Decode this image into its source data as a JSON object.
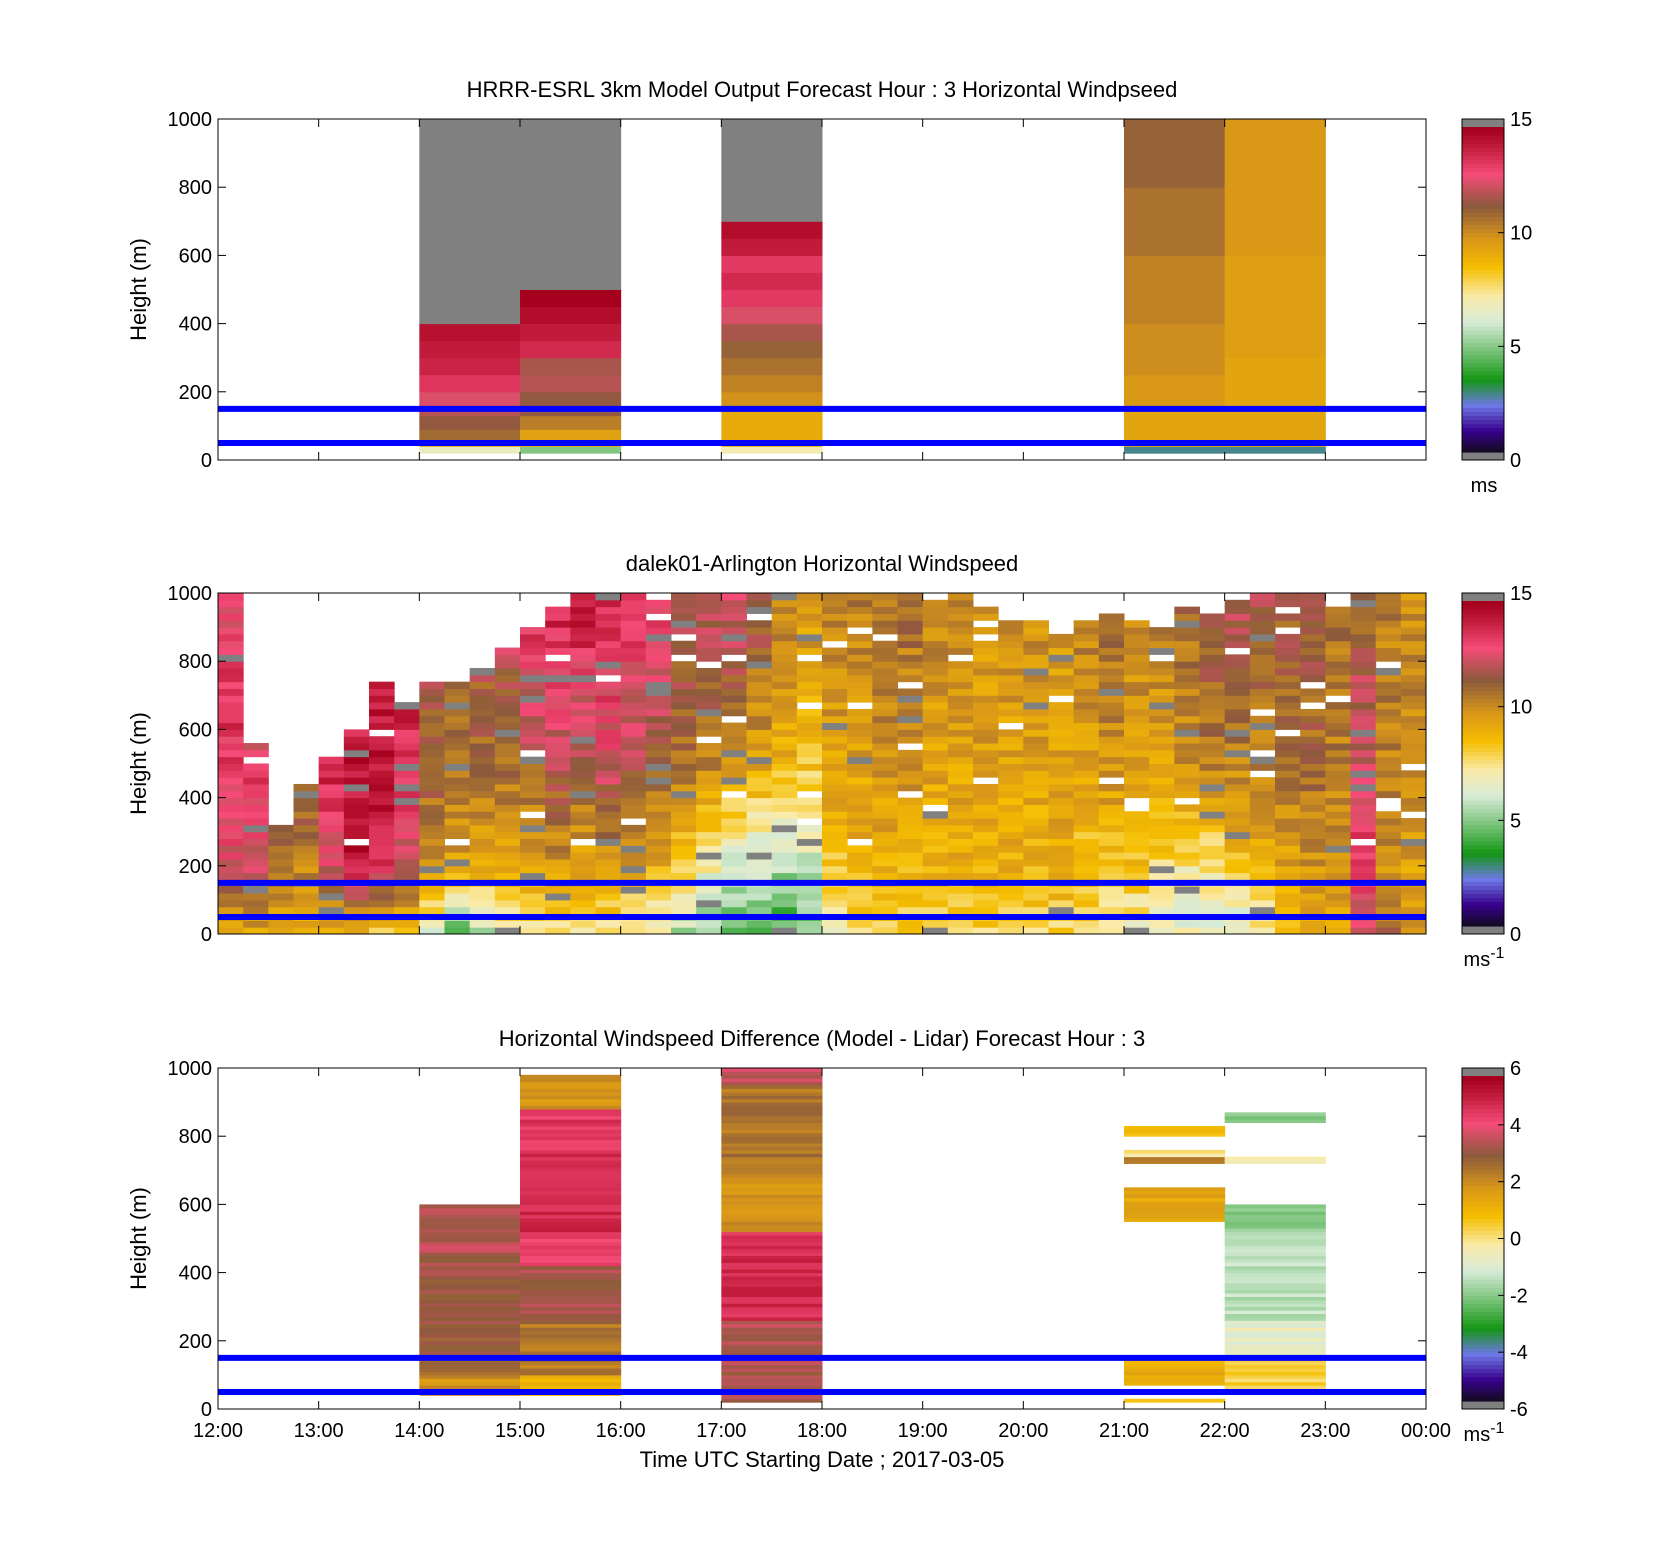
{
  "figure": {
    "background": "#ffffff",
    "x_tick_labels": [
      "12:00",
      "13:00",
      "14:00",
      "15:00",
      "16:00",
      "17:00",
      "18:00",
      "19:00",
      "20:00",
      "21:00",
      "22:00",
      "23:00",
      "00:00"
    ],
    "x_label": "Time UTC  Starting Date ; 2017-03-05",
    "y_label": "Height (m)",
    "y_tick_labels": [
      "0",
      "200",
      "400",
      "600",
      "800",
      "1000"
    ],
    "reference_line_color": "#0000ff"
  },
  "chart_data": [
    {
      "type": "heatmap",
      "title": "HRRR-ESRL 3km Model Output   Forecast Hour : 3 Horizontal Windpseed",
      "ylabel": "Height (m)",
      "xlim_hours": [
        12,
        24
      ],
      "ylim": [
        0,
        1000
      ],
      "colorbar": {
        "range": [
          0,
          15
        ],
        "ticks": [
          "0",
          "5",
          "10",
          "15"
        ],
        "unit": "ms"
      },
      "reference_lines_m": [
        50,
        150
      ],
      "columns": [
        {
          "start_hour": 14,
          "end_hour": 15,
          "top_m": 1000,
          "bins": [
            [
              20,
              40,
              6.6
            ],
            [
              40,
              60,
              9
            ],
            [
              60,
              90,
              11
            ],
            [
              90,
              130,
              11.5
            ],
            [
              130,
              160,
              12
            ],
            [
              160,
              200,
              12.5
            ],
            [
              200,
              250,
              13.5
            ],
            [
              250,
              300,
              14
            ],
            [
              300,
              350,
              14.2
            ],
            [
              350,
              400,
              14.5
            ],
            [
              400,
              1000,
              "nodata"
            ]
          ]
        },
        {
          "start_hour": 15,
          "end_hour": 16,
          "top_m": 1000,
          "bins": [
            [
              20,
              40,
              4.8
            ],
            [
              40,
              60,
              9
            ],
            [
              60,
              90,
              9.5
            ],
            [
              90,
              130,
              10.5
            ],
            [
              130,
              200,
              11.5
            ],
            [
              200,
              250,
              12
            ],
            [
              250,
              300,
              11.8
            ],
            [
              300,
              350,
              13.8
            ],
            [
              350,
              400,
              14.2
            ],
            [
              400,
              450,
              14.6
            ],
            [
              450,
              500,
              15
            ],
            [
              500,
              1000,
              "nodata"
            ]
          ]
        },
        {
          "start_hour": 17,
          "end_hour": 18,
          "top_m": 1000,
          "bins": [
            [
              20,
              40,
              7
            ],
            [
              40,
              60,
              9
            ],
            [
              60,
              150,
              9.2
            ],
            [
              150,
              200,
              10
            ],
            [
              200,
              250,
              10.4
            ],
            [
              250,
              300,
              10.8
            ],
            [
              300,
              350,
              11.2
            ],
            [
              350,
              400,
              11.8
            ],
            [
              400,
              450,
              12.5
            ],
            [
              450,
              500,
              13.4
            ],
            [
              500,
              550,
              13.8
            ],
            [
              550,
              600,
              13.4
            ],
            [
              600,
              650,
              14.2
            ],
            [
              650,
              700,
              14.6
            ],
            [
              700,
              1000,
              "nodata"
            ]
          ]
        },
        {
          "start_hour": 21,
          "end_hour": 22,
          "top_m": 1000,
          "bins": [
            [
              20,
              40,
              2.6
            ],
            [
              40,
              60,
              9.2
            ],
            [
              60,
              150,
              9.4
            ],
            [
              150,
              250,
              9.8
            ],
            [
              250,
              400,
              10.1
            ],
            [
              400,
              600,
              10.4
            ],
            [
              600,
              800,
              10.8
            ],
            [
              800,
              1000,
              11.2
            ]
          ]
        },
        {
          "start_hour": 22,
          "end_hour": 23,
          "top_m": 1000,
          "bins": [
            [
              20,
              40,
              2.6
            ],
            [
              40,
              60,
              9.2
            ],
            [
              60,
              300,
              9.4
            ],
            [
              300,
              600,
              9.6
            ],
            [
              600,
              1000,
              9.8
            ]
          ]
        }
      ]
    },
    {
      "type": "heatmap",
      "title": "dalek01-Arlington  Horizontal Windspeed",
      "ylabel": "Height (m)",
      "xlim_hours": [
        12,
        24
      ],
      "ylim": [
        0,
        1000
      ],
      "colorbar": {
        "range": [
          0,
          15
        ],
        "ticks": [
          "0",
          "5",
          "10",
          "15"
        ],
        "unit": "ms-1"
      },
      "reference_lines_m": [
        50,
        150
      ],
      "column_width_hours": 0.25,
      "bin_m": 20,
      "profiles": [
        {
          "hour": 12.0,
          "top_m": 1000,
          "surface": 9.5,
          "v200": 12.5,
          "v500": 13.5,
          "vtop": 13
        },
        {
          "hour": 12.25,
          "top_m": 560,
          "surface": 9.5,
          "v200": 12.5,
          "v500": 13.8,
          "vtop": 12.5
        },
        {
          "hour": 12.5,
          "top_m": 320,
          "surface": 9.5,
          "v200": 10.5,
          "v500": 12,
          "vtop": 11
        },
        {
          "hour": 12.75,
          "top_m": 440,
          "surface": 9,
          "v200": 10.5,
          "v500": 12,
          "vtop": 11
        },
        {
          "hour": 13.0,
          "top_m": 520,
          "surface": 9,
          "v200": 12.5,
          "v500": 14,
          "vtop": 13
        },
        {
          "hour": 13.25,
          "top_m": 600,
          "surface": 9,
          "v200": 14.5,
          "v500": 14.5,
          "vtop": 13
        },
        {
          "hour": 13.5,
          "top_m": 740,
          "surface": 8.5,
          "v200": 14,
          "v500": 14.5,
          "vtop": 14.5
        },
        {
          "hour": 13.75,
          "top_m": 680,
          "surface": 8,
          "v200": 12.5,
          "v500": 13.8,
          "vtop": 13.8
        },
        {
          "hour": 14.0,
          "top_m": 730,
          "surface": 6.5,
          "v200": 10,
          "v500": 11.5,
          "vtop": 11.5
        },
        {
          "hour": 14.25,
          "top_m": 730,
          "surface": 4.5,
          "v200": 9.5,
          "v500": 11,
          "vtop": 11
        },
        {
          "hour": 14.5,
          "top_m": 780,
          "surface": 5.5,
          "v200": 9.5,
          "v500": 11,
          "vtop": 11.5
        },
        {
          "hour": 14.75,
          "top_m": 830,
          "surface": 7,
          "v200": 9.5,
          "v500": 11,
          "vtop": 12
        },
        {
          "hour": 15.0,
          "top_m": 900,
          "surface": 7.5,
          "v200": 9.5,
          "v500": 11.5,
          "vtop": 13.5
        },
        {
          "hour": 15.25,
          "top_m": 970,
          "surface": 7.5,
          "v200": 10,
          "v500": 12,
          "vtop": 14
        },
        {
          "hour": 15.5,
          "top_m": 990,
          "surface": 7.5,
          "v200": 9.5,
          "v500": 11.5,
          "vtop": 14.5
        },
        {
          "hour": 15.75,
          "top_m": 990,
          "surface": 7.5,
          "v200": 10,
          "v500": 12.5,
          "vtop": 14
        },
        {
          "hour": 16.0,
          "top_m": 990,
          "surface": 7,
          "v200": 9.5,
          "v500": 12,
          "vtop": 13.5
        },
        {
          "hour": 16.25,
          "top_m": 980,
          "surface": 6.5,
          "v200": 9.2,
          "v500": 11.5,
          "vtop": 13.5
        },
        {
          "hour": 16.5,
          "top_m": 1000,
          "surface": 5.5,
          "v200": 8,
          "v500": 11,
          "vtop": 12
        },
        {
          "hour": 16.75,
          "top_m": 1000,
          "surface": 5,
          "v200": 7,
          "v500": 10.5,
          "vtop": 12.5
        },
        {
          "hour": 17.0,
          "top_m": 1000,
          "surface": 4.5,
          "v200": 6,
          "v500": 10,
          "vtop": 13
        },
        {
          "hour": 17.25,
          "top_m": 1000,
          "surface": 4.5,
          "v200": 6,
          "v500": 9.5,
          "vtop": 12
        },
        {
          "hour": 17.5,
          "top_m": 1000,
          "surface": 4,
          "v200": 5.5,
          "v500": 9,
          "vtop": 10.5
        },
        {
          "hour": 17.75,
          "top_m": 1000,
          "surface": 4.5,
          "v200": 6,
          "v500": 8.5,
          "vtop": 10
        },
        {
          "hour": 18.0,
          "top_m": 1000,
          "surface": 7,
          "v200": 8.5,
          "v500": 9.5,
          "vtop": 10.5
        },
        {
          "hour": 18.25,
          "top_m": 1000,
          "surface": 8,
          "v200": 9,
          "v500": 9.5,
          "vtop": 10.5
        },
        {
          "hour": 18.5,
          "top_m": 1000,
          "surface": 8,
          "v200": 9,
          "v500": 10,
          "vtop": 11
        },
        {
          "hour": 18.75,
          "top_m": 1000,
          "surface": 8,
          "v200": 9,
          "v500": 10,
          "vtop": 11
        },
        {
          "hour": 19.0,
          "top_m": 980,
          "surface": 8,
          "v200": 9,
          "v500": 9.5,
          "vtop": 10.5
        },
        {
          "hour": 19.25,
          "top_m": 1000,
          "surface": 8,
          "v200": 9,
          "v500": 9.5,
          "vtop": 10.5
        },
        {
          "hour": 19.5,
          "top_m": 960,
          "surface": 8,
          "v200": 9,
          "v500": 9.5,
          "vtop": 10
        },
        {
          "hour": 19.75,
          "top_m": 940,
          "surface": 8,
          "v200": 9,
          "v500": 9.5,
          "vtop": 10
        },
        {
          "hour": 20.0,
          "top_m": 920,
          "surface": 8,
          "v200": 9,
          "v500": 9.5,
          "vtop": 10
        },
        {
          "hour": 20.25,
          "top_m": 900,
          "surface": 8,
          "v200": 9,
          "v500": 9.5,
          "vtop": 10
        },
        {
          "hour": 20.5,
          "top_m": 920,
          "surface": 8,
          "v200": 8.5,
          "v500": 9.5,
          "vtop": 10.5
        },
        {
          "hour": 20.75,
          "top_m": 940,
          "surface": 7.5,
          "v200": 8.5,
          "v500": 10,
          "vtop": 11
        },
        {
          "hour": 21.0,
          "top_m": 920,
          "surface": 7,
          "v200": 8.5,
          "v500": 9.5,
          "vtop": 10.5
        },
        {
          "hour": 21.25,
          "top_m": 900,
          "surface": 6.5,
          "v200": 8,
          "v500": 9.5,
          "vtop": 10.5
        },
        {
          "hour": 21.5,
          "top_m": 960,
          "surface": 6.5,
          "v200": 7.5,
          "v500": 10,
          "vtop": 11
        },
        {
          "hour": 21.75,
          "top_m": 940,
          "surface": 6,
          "v200": 7.5,
          "v500": 10.5,
          "vtop": 11.5
        },
        {
          "hour": 22.0,
          "top_m": 970,
          "surface": 6,
          "v200": 8.5,
          "v500": 10.5,
          "vtop": 12
        },
        {
          "hour": 22.25,
          "top_m": 990,
          "surface": 7,
          "v200": 9,
          "v500": 10.5,
          "vtop": 12
        },
        {
          "hour": 22.5,
          "top_m": 990,
          "surface": 9,
          "v200": 9.5,
          "v500": 11,
          "vtop": 11.5
        },
        {
          "hour": 22.75,
          "top_m": 990,
          "surface": 9.5,
          "v200": 10,
          "v500": 11,
          "vtop": 11.5
        },
        {
          "hour": 23.0,
          "top_m": 960,
          "surface": 9.5,
          "v200": 10,
          "v500": 10.5,
          "vtop": 11
        },
        {
          "hour": 23.25,
          "top_m": 1000,
          "surface": 12,
          "v200": 13.5,
          "v500": 12.5,
          "vtop": 11
        },
        {
          "hour": 23.5,
          "top_m": 1000,
          "surface": 11,
          "v200": 10,
          "v500": 10.5,
          "vtop": 10.5
        },
        {
          "hour": 23.75,
          "top_m": 990,
          "surface": 10,
          "v200": 9.5,
          "v500": 10.5,
          "vtop": 10
        }
      ]
    },
    {
      "type": "heatmap",
      "title": "Horizontal Windspeed Difference (Model - Lidar) Forecast Hour : 3",
      "ylabel": "Height (m)",
      "xlabel": "Time UTC  Starting Date ; 2017-03-05",
      "xlim_hours": [
        12,
        24
      ],
      "ylim": [
        0,
        1000
      ],
      "colorbar": {
        "range": [
          -6,
          6
        ],
        "ticks": [
          "-6",
          "-4",
          "-2",
          "0",
          "2",
          "4",
          "6"
        ],
        "unit": "ms-1"
      },
      "reference_lines_m": [
        50,
        150
      ],
      "columns": [
        {
          "start_hour": 14,
          "end_hour": 15,
          "segments": [
            [
              40,
              100,
              2
            ],
            [
              100,
              250,
              3
            ],
            [
              250,
              450,
              3.3
            ],
            [
              450,
              600,
              3.6
            ]
          ]
        },
        {
          "start_hour": 15,
          "end_hour": 16,
          "segments": [
            [
              40,
              100,
              1.2
            ],
            [
              100,
              250,
              2.5
            ],
            [
              250,
              420,
              3.4
            ],
            [
              420,
              520,
              4.4
            ],
            [
              520,
              760,
              5
            ],
            [
              760,
              880,
              4.7
            ],
            [
              880,
              980,
              2
            ]
          ]
        },
        {
          "start_hour": 17,
          "end_hour": 18,
          "segments": [
            [
              20,
              150,
              3.4
            ],
            [
              150,
              260,
              3.6
            ],
            [
              260,
              520,
              5
            ],
            [
              520,
              700,
              2
            ],
            [
              700,
              950,
              2.6
            ],
            [
              950,
              1000,
              3.8
            ]
          ]
        },
        {
          "start_hour": 21,
          "end_hour": 22,
          "segments": [
            [
              20,
              30,
              1
            ],
            [
              70,
              150,
              1.2
            ],
            [
              550,
              650,
              1.4
            ],
            [
              720,
              740,
              2.4
            ],
            [
              740,
              760,
              -0.2
            ],
            [
              800,
              830,
              0.8
            ]
          ]
        },
        {
          "start_hour": 22,
          "end_hour": 23,
          "segments": [
            [
              60,
              150,
              0.4
            ],
            [
              150,
              260,
              -0.8
            ],
            [
              260,
              520,
              -1.5
            ],
            [
              520,
              600,
              -2
            ],
            [
              720,
              740,
              -0.6
            ],
            [
              840,
              870,
              -2
            ]
          ]
        }
      ]
    }
  ]
}
